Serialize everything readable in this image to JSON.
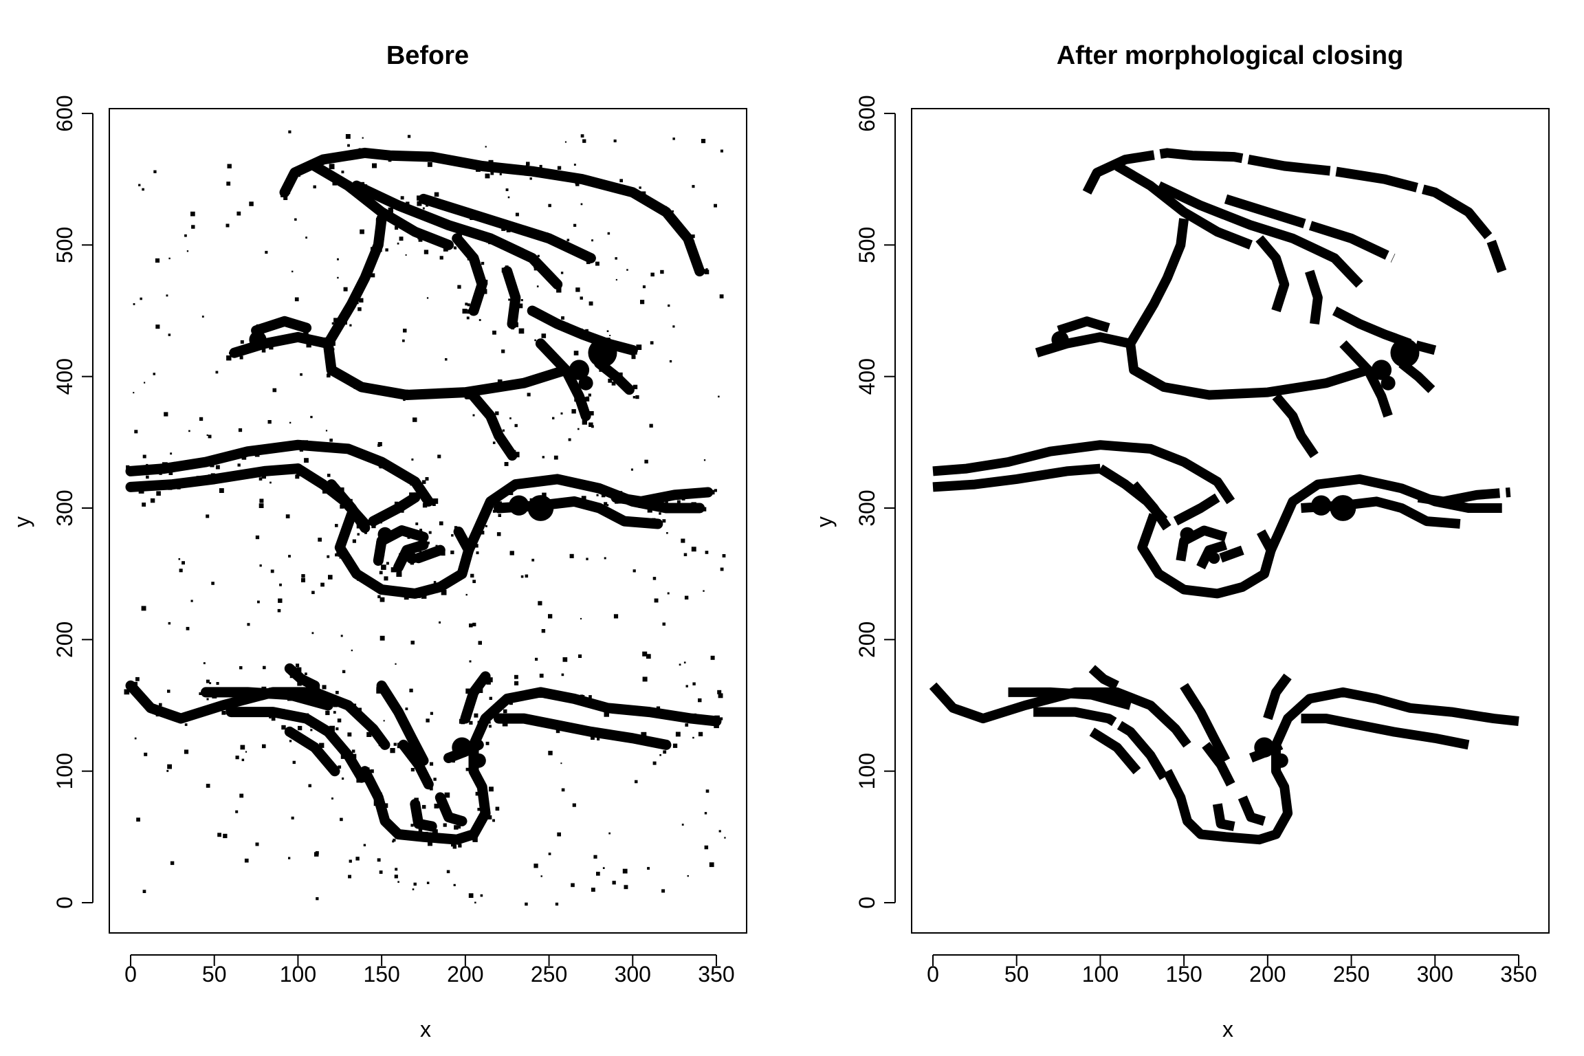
{
  "chart_data": [
    {
      "type": "scatter",
      "title": "Before",
      "xlabel": "x",
      "ylabel": "y",
      "xlim": [
        0,
        350
      ],
      "ylim": [
        0,
        600
      ],
      "xticks": [
        "0",
        "50",
        "100",
        "150",
        "200",
        "250",
        "300",
        "350"
      ],
      "yticks": [
        "0",
        "100",
        "200",
        "300",
        "400",
        "500",
        "600"
      ],
      "mark_color": "#000000",
      "content": "binary pixel mask (black on white) with noise speckles",
      "strokes": [
        [
          [
            92,
            540
          ],
          [
            98,
            555
          ],
          [
            115,
            565
          ],
          [
            140,
            570
          ],
          [
            155,
            568
          ],
          [
            180,
            567
          ],
          [
            210,
            560
          ],
          [
            240,
            556
          ],
          [
            270,
            550
          ],
          [
            300,
            540
          ],
          [
            320,
            525
          ],
          [
            333,
            505
          ],
          [
            340,
            480
          ]
        ],
        [
          [
            110,
            560
          ],
          [
            130,
            545
          ],
          [
            150,
            525
          ],
          [
            170,
            510
          ],
          [
            190,
            500
          ]
        ],
        [
          [
            135,
            545
          ],
          [
            160,
            530
          ],
          [
            190,
            515
          ],
          [
            215,
            505
          ],
          [
            240,
            490
          ],
          [
            255,
            470
          ]
        ],
        [
          [
            175,
            535
          ],
          [
            200,
            525
          ],
          [
            225,
            515
          ],
          [
            250,
            505
          ],
          [
            275,
            490
          ]
        ],
        [
          [
            150,
            520
          ],
          [
            148,
            500
          ],
          [
            140,
            475
          ],
          [
            132,
            455
          ],
          [
            125,
            440
          ],
          [
            118,
            425
          ],
          [
            120,
            405
          ],
          [
            138,
            392
          ],
          [
            165,
            386
          ],
          [
            200,
            388
          ],
          [
            235,
            395
          ],
          [
            260,
            405
          ]
        ],
        [
          [
            118,
            425
          ],
          [
            100,
            430
          ],
          [
            80,
            425
          ],
          [
            62,
            418
          ]
        ],
        [
          [
            75,
            435
          ],
          [
            92,
            442
          ],
          [
            105,
            437
          ]
        ],
        [
          [
            195,
            505
          ],
          [
            205,
            490
          ],
          [
            210,
            470
          ],
          [
            205,
            450
          ]
        ],
        [
          [
            225,
            480
          ],
          [
            230,
            460
          ],
          [
            228,
            440
          ]
        ],
        [
          [
            240,
            450
          ],
          [
            255,
            440
          ],
          [
            270,
            432
          ],
          [
            285,
            425
          ],
          [
            300,
            420
          ]
        ],
        [
          [
            245,
            425
          ],
          [
            260,
            405
          ],
          [
            268,
            385
          ],
          [
            272,
            370
          ]
        ],
        [
          [
            280,
            410
          ],
          [
            290,
            400
          ],
          [
            298,
            390
          ]
        ],
        [
          [
            205,
            385
          ],
          [
            215,
            370
          ],
          [
            220,
            355
          ],
          [
            228,
            340
          ]
        ],
        [
          [
            0,
            328
          ],
          [
            20,
            330
          ],
          [
            45,
            335
          ],
          [
            70,
            343
          ],
          [
            100,
            348
          ],
          [
            130,
            345
          ],
          [
            150,
            335
          ],
          [
            170,
            320
          ],
          [
            178,
            305
          ]
        ],
        [
          [
            0,
            316
          ],
          [
            25,
            318
          ],
          [
            50,
            322
          ],
          [
            80,
            328
          ],
          [
            100,
            330
          ]
        ],
        [
          [
            100,
            330
          ],
          [
            115,
            318
          ],
          [
            128,
            305
          ],
          [
            140,
            288
          ]
        ],
        [
          [
            120,
            318
          ],
          [
            132,
            300
          ],
          [
            140,
            285
          ]
        ],
        [
          [
            132,
            295
          ],
          [
            125,
            270
          ],
          [
            135,
            250
          ],
          [
            150,
            238
          ],
          [
            170,
            235
          ],
          [
            185,
            240
          ],
          [
            198,
            250
          ],
          [
            202,
            268
          ],
          [
            196,
            282
          ]
        ],
        [
          [
            148,
            260
          ],
          [
            150,
            275
          ],
          [
            162,
            283
          ],
          [
            175,
            278
          ]
        ],
        [
          [
            160,
            255
          ],
          [
            165,
            268
          ],
          [
            175,
            272
          ]
        ],
        [
          [
            172,
            262
          ],
          [
            185,
            268
          ]
        ],
        [
          [
            145,
            290
          ],
          [
            160,
            300
          ],
          [
            170,
            308
          ]
        ],
        [
          [
            202,
            268
          ],
          [
            208,
            285
          ],
          [
            215,
            305
          ],
          [
            230,
            318
          ],
          [
            255,
            322
          ],
          [
            280,
            315
          ],
          [
            300,
            305
          ],
          [
            320,
            300
          ],
          [
            340,
            300
          ]
        ],
        [
          [
            220,
            300
          ],
          [
            245,
            302
          ],
          [
            265,
            305
          ],
          [
            280,
            300
          ],
          [
            295,
            290
          ],
          [
            315,
            288
          ]
        ],
        [
          [
            290,
            308
          ],
          [
            305,
            305
          ],
          [
            325,
            310
          ],
          [
            345,
            312
          ]
        ],
        [
          [
            0,
            165
          ],
          [
            12,
            148
          ],
          [
            30,
            140
          ],
          [
            55,
            150
          ],
          [
            85,
            160
          ],
          [
            110,
            160
          ],
          [
            130,
            150
          ],
          [
            145,
            132
          ],
          [
            152,
            120
          ]
        ],
        [
          [
            45,
            160
          ],
          [
            70,
            160
          ],
          [
            95,
            158
          ],
          [
            118,
            150
          ]
        ],
        [
          [
            60,
            145
          ],
          [
            85,
            145
          ],
          [
            105,
            140
          ],
          [
            118,
            130
          ],
          [
            130,
            112
          ],
          [
            138,
            95
          ]
        ],
        [
          [
            95,
            130
          ],
          [
            110,
            118
          ],
          [
            122,
            100
          ]
        ],
        [
          [
            150,
            165
          ],
          [
            160,
            145
          ],
          [
            168,
            125
          ],
          [
            175,
            108
          ]
        ],
        [
          [
            163,
            120
          ],
          [
            172,
            105
          ],
          [
            178,
            90
          ]
        ],
        [
          [
            140,
            100
          ],
          [
            148,
            80
          ],
          [
            152,
            62
          ],
          [
            160,
            52
          ],
          [
            175,
            50
          ],
          [
            195,
            48
          ],
          [
            205,
            52
          ],
          [
            212,
            68
          ],
          [
            210,
            88
          ],
          [
            205,
            100
          ],
          [
            205,
            120
          ],
          [
            212,
            140
          ],
          [
            225,
            155
          ],
          [
            245,
            160
          ],
          [
            265,
            155
          ],
          [
            285,
            148
          ],
          [
            310,
            145
          ],
          [
            335,
            140
          ],
          [
            350,
            138
          ]
        ],
        [
          [
            170,
            75
          ],
          [
            172,
            60
          ],
          [
            180,
            58
          ]
        ],
        [
          [
            185,
            80
          ],
          [
            190,
            65
          ],
          [
            198,
            62
          ]
        ],
        [
          [
            220,
            140
          ],
          [
            235,
            140
          ],
          [
            255,
            135
          ],
          [
            275,
            130
          ],
          [
            300,
            125
          ],
          [
            320,
            120
          ]
        ],
        [
          [
            190,
            110
          ],
          [
            200,
            115
          ],
          [
            208,
            120
          ]
        ],
        [
          [
            200,
            140
          ],
          [
            205,
            160
          ],
          [
            212,
            172
          ]
        ],
        [
          [
            95,
            178
          ],
          [
            102,
            170
          ],
          [
            110,
            165
          ]
        ]
      ],
      "blobs": [
        [
          [
            282,
            418
          ],
          10
        ],
        [
          [
            268,
            405
          ],
          7
        ],
        [
          [
            245,
            300
          ],
          9
        ],
        [
          [
            232,
            302
          ],
          7
        ],
        [
          [
            76,
            428
          ],
          6
        ],
        [
          [
            198,
            118
          ],
          7
        ],
        [
          [
            152,
            280
          ],
          5
        ],
        [
          [
            272,
            395
          ],
          5
        ],
        [
          [
            168,
            262
          ],
          4
        ],
        [
          [
            208,
            108
          ],
          5
        ]
      ]
    },
    {
      "type": "scatter",
      "title": "After morphological closing",
      "xlabel": "x",
      "ylabel": "y",
      "xlim": [
        0,
        350
      ],
      "ylim": [
        0,
        600
      ],
      "xticks": [
        "0",
        "50",
        "100",
        "150",
        "200",
        "250",
        "300",
        "350"
      ],
      "yticks": [
        "0",
        "100",
        "200",
        "300",
        "400",
        "500",
        "600"
      ],
      "mark_color": "#000000",
      "content": "same binary mask after morphological closing (noise removed)"
    }
  ]
}
